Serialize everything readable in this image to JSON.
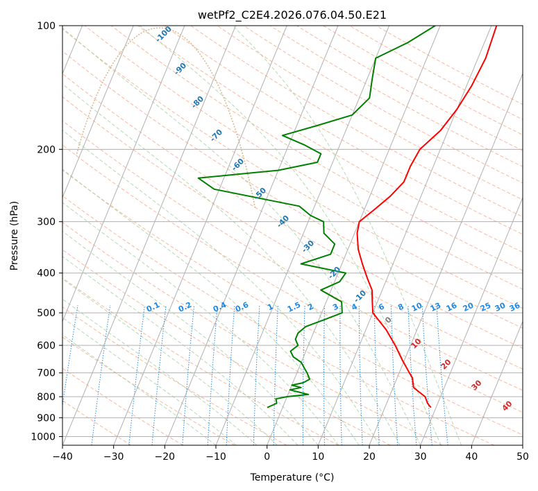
{
  "chart_data": {
    "type": "line",
    "title": "wetPf2_C2E4.2026.076.04.50.E21",
    "xlabel": "Temperature (°C)",
    "ylabel": "Pressure (hPa)",
    "xlim": [
      -40,
      50
    ],
    "ylim": [
      1050,
      100
    ],
    "y_scale": "log",
    "x_ticks": [
      "−40",
      "−30",
      "−20",
      "−10",
      "0",
      "10",
      "20",
      "30",
      "40",
      "50"
    ],
    "y_ticks": [
      "100",
      "200",
      "300",
      "400",
      "500",
      "600",
      "700",
      "800",
      "900",
      "1000"
    ],
    "grid": true,
    "series": [
      {
        "color": "#ff0000",
        "p": [
          850,
          830,
          800,
          780,
          760,
          740,
          720,
          700,
          650,
          600,
          550,
          500,
          470,
          440,
          410,
          380,
          350,
          320,
          300,
          280,
          260,
          240,
          220,
          200,
          180,
          160,
          140,
          120,
          100
        ],
        "t": [
          29,
          28,
          27,
          25.5,
          24,
          23.5,
          23,
          22,
          19.5,
          17,
          14,
          10,
          9,
          8,
          6,
          4,
          2,
          0.5,
          0,
          2,
          4,
          5.5,
          5.5,
          6,
          8.5,
          10,
          11,
          11.5,
          11
        ]
      },
      {
        "color": "#008000",
        "p": [
          850,
          830,
          810,
          800,
          790,
          780,
          770,
          760,
          750,
          740,
          725,
          700,
          680,
          660,
          640,
          620,
          600,
          580,
          560,
          540,
          520,
          500,
          470,
          440,
          420,
          400,
          380,
          360,
          340,
          320,
          300,
          290,
          275,
          265,
          250,
          235,
          225,
          215,
          205,
          195,
          185,
          175,
          165,
          150,
          135,
          120,
          110,
          100
        ],
        "t": [
          -3,
          -1.5,
          -2,
          0,
          4,
          2,
          0,
          2,
          0,
          2,
          3,
          2,
          1,
          0,
          -2,
          -3,
          -2,
          -3,
          -3,
          -2,
          1,
          4,
          3,
          -2,
          1,
          1.5,
          -8,
          -3,
          -3,
          -6,
          -7,
          -10,
          -13,
          -20,
          -31,
          -35,
          -20,
          -13,
          -13,
          -17,
          -22,
          -16,
          -10,
          -8,
          -9,
          -10,
          -5,
          -1
        ]
      }
    ],
    "dry_adiabat_labels": [
      "-100",
      "-90",
      "-80",
      "-70",
      "-60",
      "-50",
      "-40",
      "-30",
      "-20",
      "-10",
      "0",
      "10",
      "20",
      "30",
      "40"
    ],
    "mixing_ratio_labels": [
      "0.1",
      "0.2",
      "0.4",
      "0.6",
      "1",
      "1.5",
      "2",
      "3",
      "4",
      "6",
      "8",
      "10",
      "13",
      "16",
      "20",
      "25",
      "30",
      "36"
    ],
    "colors": {
      "isotherm": "#b0b0b0",
      "isobar": "#b0b0b0",
      "dry_adiabat": "#f9a585",
      "moist_adiabat": "#9fcf9f",
      "mixing_ratio": "#1e88e5",
      "label_cold": "#1f77b4",
      "label_warm": "#d62728",
      "label_zero": "#7f7f7f",
      "ccl_arc": "#d8b890"
    }
  }
}
